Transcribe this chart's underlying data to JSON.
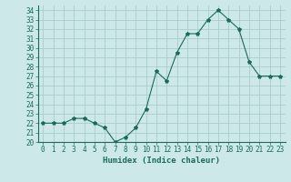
{
  "x": [
    0,
    1,
    2,
    3,
    4,
    5,
    6,
    7,
    8,
    9,
    10,
    11,
    12,
    13,
    14,
    15,
    16,
    17,
    18,
    19,
    20,
    21,
    22,
    23
  ],
  "y": [
    22,
    22,
    22,
    22.5,
    22.5,
    22,
    21.5,
    20,
    20.5,
    21.5,
    23.5,
    27.5,
    26.5,
    29.5,
    31.5,
    31.5,
    33,
    34,
    33,
    32,
    28.5,
    27,
    27,
    27
  ],
  "line_color": "#1a6b5a",
  "marker": "*",
  "marker_size": 3,
  "bg_color": "#cce8e8",
  "grid_color": "#aacccc",
  "xlabel": "Humidex (Indice chaleur)",
  "ylim": [
    20,
    34.5
  ],
  "xlim": [
    -0.5,
    23.5
  ],
  "yticks": [
    20,
    21,
    22,
    23,
    24,
    25,
    26,
    27,
    28,
    29,
    30,
    31,
    32,
    33,
    34
  ],
  "xticks": [
    0,
    1,
    2,
    3,
    4,
    5,
    6,
    7,
    8,
    9,
    10,
    11,
    12,
    13,
    14,
    15,
    16,
    17,
    18,
    19,
    20,
    21,
    22,
    23
  ],
  "tick_label_size": 5.5,
  "xlabel_size": 6.5,
  "axis_color": "#1a6b5a"
}
